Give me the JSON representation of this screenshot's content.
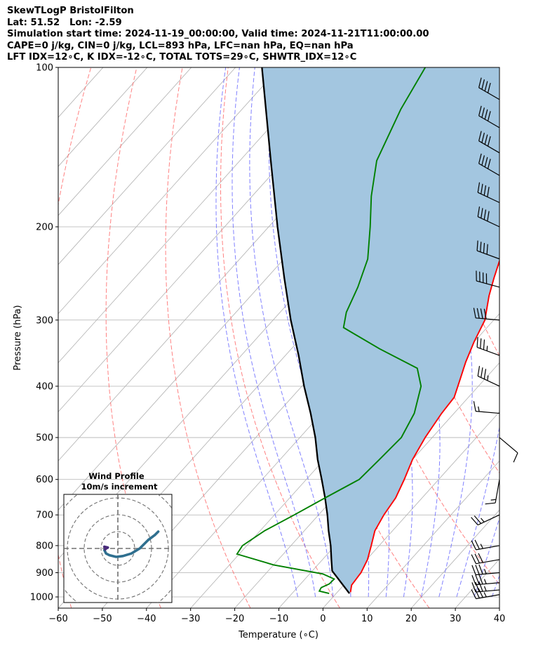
{
  "header": {
    "line1": "SkewTLogP BristolFilton",
    "line2": "Lat: 51.52   Lon: -2.59",
    "line3": "Simulation start time: 2024-11-19_00:00:00, Valid time: 2024-11-21T11:00:00.00",
    "line4": "CAPE=0 j/kg, CIN=0 j/kg, LCL=893 hPa, LFC=nan hPa, EQ=nan hPa",
    "line5": "LFT IDX=12$^\\circ$C, K IDX=-12$^\\circ$C, TOTAL TOTS=29$^\\circ$C, SHWTR_IDX=12$^\\circ$C"
  },
  "header_display": {
    "line5": "LFT IDX=12∘C, K IDX=-12∘C, TOTAL TOTS=29∘C, SHWTR_IDX=12∘C"
  },
  "chart_data": {
    "type": "skew-t log-p",
    "xlabel": "Temperature (∘C)",
    "ylabel": "Pressure (hPa)",
    "xlim": [
      -60,
      40
    ],
    "ylim": [
      1050,
      100
    ],
    "x_ticks": [
      -60,
      -50,
      -40,
      -30,
      -20,
      -10,
      0,
      10,
      20,
      30,
      40
    ],
    "x_tick_labels": [
      "−60",
      "−50",
      "−40",
      "−30",
      "−20",
      "−10",
      "0",
      "10",
      "20",
      "30",
      "40"
    ],
    "y_ticks": [
      1000,
      900,
      800,
      700,
      600,
      500,
      400,
      300,
      200,
      100
    ],
    "y_tick_labels": [
      "1000",
      "900",
      "800",
      "700",
      "600",
      "500",
      "400",
      "300",
      "200",
      "100"
    ],
    "colors": {
      "temperature": "#ff0000",
      "dewpoint": "#008000",
      "parcel": "#000000",
      "cape_fill": "#a3c6e0",
      "dry_adiabats": "#ff6b6b",
      "moist_adiabats": "#6b6bff",
      "isotherms": "#b0b0b0",
      "hodograph": "#2f6f8f"
    },
    "temperature_profile": [
      {
        "p": 980,
        "t": 3.0
      },
      {
        "p": 950,
        "t": 1.8
      },
      {
        "p": 900,
        "t": 1.4
      },
      {
        "p": 850,
        "t": 0.2
      },
      {
        "p": 800,
        "t": -1.8
      },
      {
        "p": 750,
        "t": -4.0
      },
      {
        "p": 700,
        "t": -5.2
      },
      {
        "p": 650,
        "t": -6.0
      },
      {
        "p": 600,
        "t": -7.8
      },
      {
        "p": 550,
        "t": -10.0
      },
      {
        "p": 500,
        "t": -11.6
      },
      {
        "p": 450,
        "t": -12.8
      },
      {
        "p": 420,
        "t": -13.2
      },
      {
        "p": 390,
        "t": -15.4
      },
      {
        "p": 360,
        "t": -17.8
      },
      {
        "p": 330,
        "t": -20.0
      },
      {
        "p": 300,
        "t": -22.0
      },
      {
        "p": 270,
        "t": -26.0
      },
      {
        "p": 250,
        "t": -28.5
      },
      {
        "p": 230,
        "t": -31.0
      },
      {
        "p": 210,
        "t": -35.0
      },
      {
        "p": 180,
        "t": -40.0
      },
      {
        "p": 160,
        "t": -44.0
      },
      {
        "p": 140,
        "t": -48.5
      },
      {
        "p": 120,
        "t": -54.0
      },
      {
        "p": 100,
        "t": -61.0
      }
    ],
    "dewpoint_profile": [
      {
        "p": 985,
        "t": -1.6
      },
      {
        "p": 975,
        "t": -4.3
      },
      {
        "p": 960,
        "t": -4.6
      },
      {
        "p": 945,
        "t": -3.5
      },
      {
        "p": 925,
        "t": -3.4
      },
      {
        "p": 905,
        "t": -7.0
      },
      {
        "p": 870,
        "t": -20.0
      },
      {
        "p": 830,
        "t": -30.5
      },
      {
        "p": 800,
        "t": -31.0
      },
      {
        "p": 750,
        "t": -29.0
      },
      {
        "p": 700,
        "t": -25.5
      },
      {
        "p": 650,
        "t": -22.0
      },
      {
        "p": 600,
        "t": -18.0
      },
      {
        "p": 550,
        "t": -17.5
      },
      {
        "p": 500,
        "t": -17.0
      },
      {
        "p": 450,
        "t": -19.0
      },
      {
        "p": 400,
        "t": -23.0
      },
      {
        "p": 370,
        "t": -27.5
      },
      {
        "p": 340,
        "t": -40.0
      },
      {
        "p": 310,
        "t": -52.5
      },
      {
        "p": 290,
        "t": -55.0
      },
      {
        "p": 260,
        "t": -57.5
      },
      {
        "p": 230,
        "t": -61.0
      },
      {
        "p": 200,
        "t": -67.0
      },
      {
        "p": 175,
        "t": -73.0
      },
      {
        "p": 150,
        "t": -79.0
      },
      {
        "p": 120,
        "t": -84.0
      },
      {
        "p": 100,
        "t": -87.0
      }
    ],
    "parcel_profile": [
      {
        "p": 985,
        "t": 3.0
      },
      {
        "p": 893,
        "t": -5.5
      },
      {
        "p": 850,
        "t": -8.0
      },
      {
        "p": 800,
        "t": -11.0
      },
      {
        "p": 750,
        "t": -14.5
      },
      {
        "p": 700,
        "t": -18.0
      },
      {
        "p": 650,
        "t": -22.0
      },
      {
        "p": 600,
        "t": -26.5
      },
      {
        "p": 550,
        "t": -31.5
      },
      {
        "p": 500,
        "t": -36.5
      },
      {
        "p": 450,
        "t": -42.5
      },
      {
        "p": 400,
        "t": -49.5
      },
      {
        "p": 350,
        "t": -57.0
      },
      {
        "p": 300,
        "t": -66.0
      },
      {
        "p": 250,
        "t": -76.0
      },
      {
        "p": 200,
        "t": -88.0
      },
      {
        "p": 150,
        "t": -103.0
      },
      {
        "p": 100,
        "t": -124.0
      }
    ],
    "wind_barbs": [
      {
        "p": 990,
        "speed_kt": 35,
        "dir_deg": 260
      },
      {
        "p": 970,
        "speed_kt": 35,
        "dir_deg": 265
      },
      {
        "p": 940,
        "speed_kt": 35,
        "dir_deg": 265
      },
      {
        "p": 900,
        "speed_kt": 35,
        "dir_deg": 265
      },
      {
        "p": 850,
        "speed_kt": 30,
        "dir_deg": 260
      },
      {
        "p": 800,
        "speed_kt": 25,
        "dir_deg": 260
      },
      {
        "p": 700,
        "speed_kt": 25,
        "dir_deg": 245
      },
      {
        "p": 600,
        "speed_kt": 15,
        "dir_deg": 190
      },
      {
        "p": 500,
        "speed_kt": 10,
        "dir_deg": 130
      },
      {
        "p": 450,
        "speed_kt": 15,
        "dir_deg": 275
      },
      {
        "p": 400,
        "speed_kt": 35,
        "dir_deg": 295
      },
      {
        "p": 350,
        "speed_kt": 35,
        "dir_deg": 290
      },
      {
        "p": 300,
        "speed_kt": 40,
        "dir_deg": 275
      },
      {
        "p": 260,
        "speed_kt": 40,
        "dir_deg": 285
      },
      {
        "p": 230,
        "speed_kt": 40,
        "dir_deg": 290
      },
      {
        "p": 200,
        "speed_kt": 40,
        "dir_deg": 295
      },
      {
        "p": 180,
        "speed_kt": 40,
        "dir_deg": 295
      },
      {
        "p": 160,
        "speed_kt": 40,
        "dir_deg": 300
      },
      {
        "p": 145,
        "speed_kt": 40,
        "dir_deg": 300
      },
      {
        "p": 130,
        "speed_kt": 40,
        "dir_deg": 300
      },
      {
        "p": 115,
        "speed_kt": 40,
        "dir_deg": 300
      }
    ],
    "hodograph": {
      "title": "Wind Profile",
      "subtitle": "10m/s increment",
      "ring_increment_ms": 10,
      "u_ms": [
        24,
        22,
        18,
        13,
        8,
        3,
        -1,
        -5,
        -7,
        -8,
        -7,
        -8,
        -6,
        -7
      ],
      "v_ms": [
        10,
        8,
        5,
        0,
        -3,
        -4.5,
        -5,
        -4,
        -3,
        -1,
        0,
        1,
        0.5,
        0
      ]
    }
  }
}
